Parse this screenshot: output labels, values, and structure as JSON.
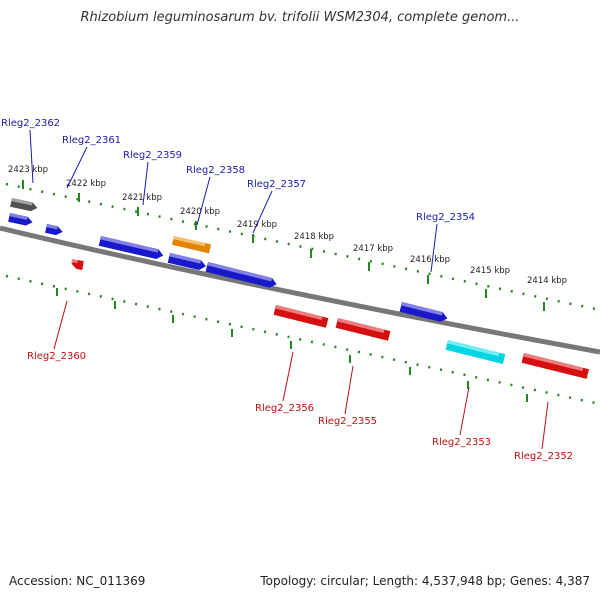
{
  "title": "Rhizobium leguminosarum bv. trifolii WSM2304, complete genom...",
  "footer": {
    "accession": "Accession: NC_011369",
    "summary": "Topology: circular; Length: 4,537,948 bp; Genes: 4,387"
  },
  "colors": {
    "forward_gene": "#1a1ad6",
    "reverse_gene": "#e01010",
    "grey_gene": "#555555",
    "orange_gene": "#f08c00",
    "cyan_gene": "#00e0ee",
    "axis": "#777777",
    "tick": "#228822",
    "forward_label": "#1a1ab0",
    "reverse_label": "#c01010"
  },
  "scale_ticks": [
    {
      "label": "2423 kbp",
      "kbp": 2423
    },
    {
      "label": "2422 kbp",
      "kbp": 2422
    },
    {
      "label": "2421 kbp",
      "kbp": 2421
    },
    {
      "label": "2420 kbp",
      "kbp": 2420
    },
    {
      "label": "2419 kbp",
      "kbp": 2419
    },
    {
      "label": "2418 kbp",
      "kbp": 2418
    },
    {
      "label": "2417 kbp",
      "kbp": 2417
    },
    {
      "label": "2416 kbp",
      "kbp": 2416
    },
    {
      "label": "2415 kbp",
      "kbp": 2415
    },
    {
      "label": "2414 kbp",
      "kbp": 2414
    }
  ],
  "genes": [
    {
      "name": "Rleg2_2362",
      "strand": "+",
      "color": "grey"
    },
    {
      "name": "Rleg2_2361",
      "strand": "+",
      "color": "blue"
    },
    {
      "name": "Rleg2_2359",
      "strand": "+",
      "color": "blue"
    },
    {
      "name": "Rleg2_2358",
      "strand": "+",
      "color": "orange"
    },
    {
      "name": "Rleg2_2357",
      "strand": "+",
      "color": "blue"
    },
    {
      "name": "Rleg2_2354",
      "strand": "+",
      "color": "blue"
    },
    {
      "name": "Rleg2_2360",
      "strand": "-",
      "color": "red"
    },
    {
      "name": "Rleg2_2356",
      "strand": "-",
      "color": "red"
    },
    {
      "name": "Rleg2_2355",
      "strand": "-",
      "color": "red"
    },
    {
      "name": "Rleg2_2353",
      "strand": "-",
      "color": "cyan"
    },
    {
      "name": "Rleg2_2352",
      "strand": "-",
      "color": "red"
    }
  ]
}
